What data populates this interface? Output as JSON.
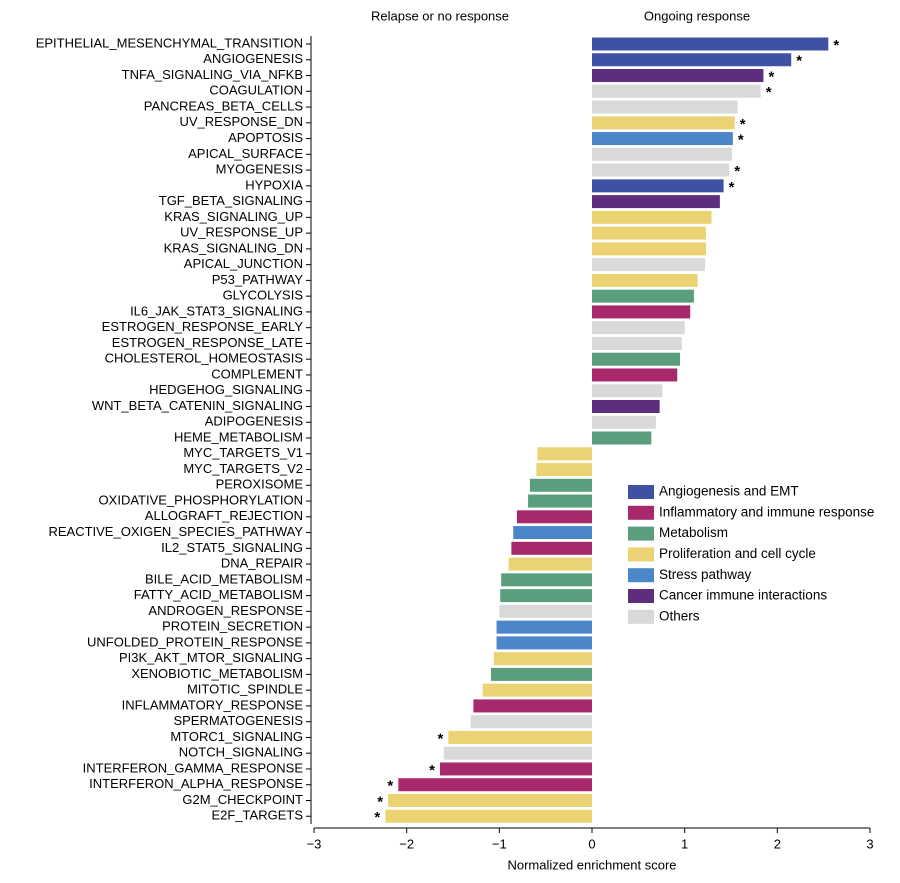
{
  "chart_data": {
    "type": "barh",
    "header_labels": [
      "Relapse or no response",
      "Ongoing response"
    ],
    "x_label": "Normalized enrichment score",
    "categories": [
      "EPITHELIAL_MESENCHYMAL_TRANSITION",
      "ANGIOGENESIS",
      "TNFA_SIGNALING_VIA_NFKB",
      "COAGULATION",
      "PANCREAS_BETA_CELLS",
      "UV_RESPONSE_DN",
      "APOPTOSIS",
      "APICAL_SURFACE",
      "MYOGENESIS",
      "HYPOXIA",
      "TGF_BETA_SIGNALING",
      "KRAS_SIGNALING_UP",
      "UV_RESPONSE_UP",
      "KRAS_SIGNALING_DN",
      "APICAL_JUNCTION",
      "P53_PATHWAY",
      "GLYCOLYSIS",
      "IL6_JAK_STAT3_SIGNALING",
      "ESTROGEN_RESPONSE_EARLY",
      "ESTROGEN_RESPONSE_LATE",
      "CHOLESTEROL_HOMEOSTASIS",
      "COMPLEMENT",
      "HEDGEHOG_SIGNALING",
      "WNT_BETA_CATENIN_SIGNALING",
      "ADIPOGENESIS",
      "HEME_METABOLISM",
      "MYC_TARGETS_V1",
      "MYC_TARGETS_V2",
      "PEROXISOME",
      "OXIDATIVE_PHOSPHORYLATION",
      "ALLOGRAFT_REJECTION",
      "REACTIVE_OXIGEN_SPECIES_PATHWAY",
      "IL2_STAT5_SIGNALING",
      "DNA_REPAIR",
      "BILE_ACID_METABOLISM",
      "FATTY_ACID_METABOLISM",
      "ANDROGEN_RESPONSE",
      "PROTEIN_SECRETION",
      "UNFOLDED_PROTEIN_RESPONSE",
      "PI3K_AKT_MTOR_SIGNALING",
      "XENOBIOTIC_METABOLISM",
      "MITOTIC_SPINDLE",
      "INFLAMMATORY_RESPONSE",
      "SPERMATOGENESIS",
      "MTORC1_SIGNALING",
      "NOTCH_SIGNALING",
      "INTERFERON_GAMMA_RESPONSE",
      "INTERFERON_ALPHA_RESPONSE",
      "G2M_CHECKPOINT",
      "E2F_TARGETS"
    ],
    "values": [
      2.55,
      2.15,
      1.85,
      1.82,
      1.57,
      1.54,
      1.52,
      1.51,
      1.48,
      1.42,
      1.38,
      1.29,
      1.23,
      1.23,
      1.22,
      1.14,
      1.1,
      1.06,
      1.0,
      0.97,
      0.95,
      0.92,
      0.76,
      0.73,
      0.69,
      0.64,
      -0.59,
      -0.6,
      -0.67,
      -0.69,
      -0.81,
      -0.85,
      -0.87,
      -0.9,
      -0.98,
      -0.99,
      -1.0,
      -1.03,
      -1.03,
      -1.06,
      -1.09,
      -1.18,
      -1.28,
      -1.31,
      -1.55,
      -1.6,
      -1.64,
      -2.09,
      -2.2,
      -2.23
    ],
    "colors": [
      "#3f51a3",
      "#3f51a3",
      "#5e2d7e",
      "#d9d9d9",
      "#d9d9d9",
      "#ebd374",
      "#4a86c8",
      "#d9d9d9",
      "#d9d9d9",
      "#3f51a3",
      "#5e2d7e",
      "#ebd374",
      "#ebd374",
      "#ebd374",
      "#d9d9d9",
      "#ebd374",
      "#5a9e7e",
      "#a8296b",
      "#d9d9d9",
      "#d9d9d9",
      "#5a9e7e",
      "#a8296b",
      "#d9d9d9",
      "#5e2d7e",
      "#d9d9d9",
      "#5a9e7e",
      "#ebd374",
      "#ebd374",
      "#5a9e7e",
      "#5a9e7e",
      "#a8296b",
      "#4a86c8",
      "#a8296b",
      "#ebd374",
      "#5a9e7e",
      "#5a9e7e",
      "#d9d9d9",
      "#4a86c8",
      "#4a86c8",
      "#ebd374",
      "#5a9e7e",
      "#ebd374",
      "#a8296b",
      "#d9d9d9",
      "#ebd374",
      "#d9d9d9",
      "#a8296b",
      "#a8296b",
      "#ebd374",
      "#ebd374"
    ],
    "markers": [
      "*",
      "*",
      "*",
      "*",
      null,
      "*",
      "*",
      null,
      "*",
      "*",
      null,
      null,
      null,
      null,
      null,
      null,
      null,
      null,
      null,
      null,
      null,
      null,
      null,
      null,
      null,
      null,
      null,
      null,
      null,
      null,
      null,
      null,
      null,
      null,
      null,
      null,
      null,
      null,
      null,
      null,
      null,
      null,
      null,
      null,
      "*",
      null,
      "*",
      "*",
      "*",
      "*"
    ],
    "legend": [
      {
        "name": "Angiogenesis and EMT",
        "color": "#3f51a3"
      },
      {
        "name": "Inflammatory and immune response",
        "color": "#a8296b"
      },
      {
        "name": "Metabolism",
        "color": "#5a9e7e"
      },
      {
        "name": "Proliferation and cell cycle",
        "color": "#ebd374"
      },
      {
        "name": "Stress pathway",
        "color": "#4a86c8"
      },
      {
        "name": "Cancer immune interactions",
        "color": "#5e2d7e"
      },
      {
        "name": "Others",
        "color": "#d9d9d9"
      }
    ],
    "xlim": [
      -3,
      3
    ],
    "xticks": [
      {
        "value": -3,
        "label": "−3"
      },
      {
        "value": -2,
        "label": "−2"
      },
      {
        "value": -1,
        "label": "−1"
      },
      0,
      1,
      2,
      3
    ]
  }
}
